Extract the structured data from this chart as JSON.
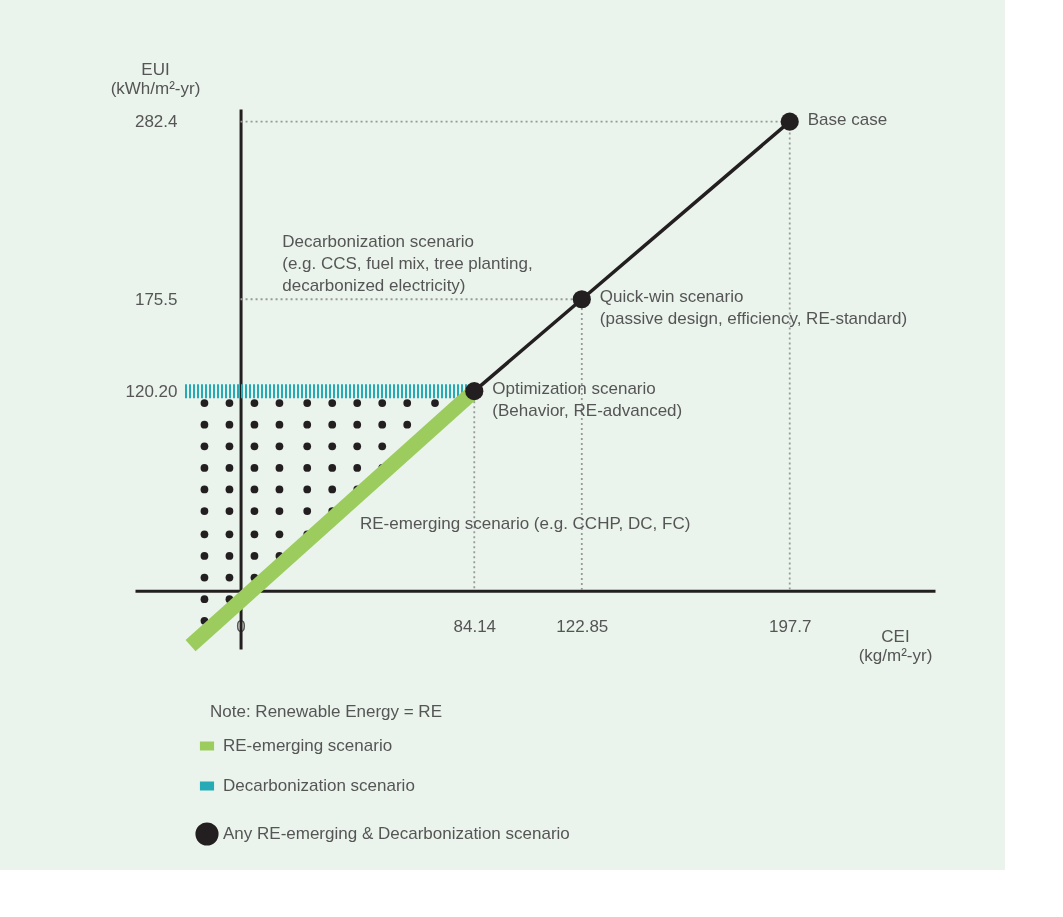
{
  "chart_data": {
    "type": "line",
    "xlabel": "CEI\n(kg/m²-yr)",
    "ylabel": "EUI\n(kWh/m²-yr)",
    "xlim": [
      -38,
      250
    ],
    "ylim": [
      -35,
      290
    ],
    "xticks": [
      0,
      84.14,
      122.85,
      197.7
    ],
    "yticks": [
      {
        "value": 120.2,
        "label": "120.20"
      },
      175.5,
      282.4
    ],
    "legend": "bottom",
    "series": [
      {
        "type": "line",
        "color": "#999999",
        "line_style": "dotted",
        "x": [
          84.14,
          84.14
        ],
        "values": [
          120.2,
          0
        ]
      },
      {
        "type": "line",
        "color": "#999999",
        "line_style": "dotted",
        "x": [
          0,
          122.85,
          122.85
        ],
        "values": [
          175.5,
          175.5,
          0
        ]
      },
      {
        "type": "line",
        "color": "#999999",
        "line_style": "dotted",
        "x": [
          0,
          197.7,
          197.7
        ],
        "values": [
          282.4,
          282.4,
          0
        ]
      },
      {
        "name": "Any RE-emerging & Decarbonization scenario",
        "type": "scatter",
        "color": "#231f20",
        "marker": "circle",
        "x": [
          -13,
          -4,
          5,
          14,
          24,
          33,
          42,
          51,
          60,
          70,
          -13,
          -4,
          5,
          14,
          24,
          33,
          42,
          51,
          60,
          -13,
          -4,
          5,
          14,
          24,
          33,
          42,
          51,
          -13,
          -4,
          5,
          14,
          24,
          33,
          42,
          51,
          -13,
          -4,
          5,
          14,
          24,
          33,
          42,
          -13,
          -4,
          5,
          14,
          24,
          33,
          -13,
          -4,
          5,
          14,
          24,
          -13,
          -4,
          5,
          14,
          -13,
          -4,
          5,
          -13,
          -4,
          -13
        ],
        "values": [
          113,
          113,
          113,
          113,
          113,
          113,
          113,
          113,
          113,
          113,
          100,
          100,
          100,
          100,
          100,
          100,
          100,
          100,
          100,
          87,
          87,
          87,
          87,
          87,
          87,
          87,
          87,
          74,
          74,
          74,
          74,
          74,
          74,
          74,
          74,
          61,
          61,
          61,
          61,
          61,
          61,
          61,
          48,
          48,
          48,
          48,
          48,
          48,
          34,
          34,
          34,
          34,
          34,
          21,
          21,
          21,
          21,
          8,
          8,
          8,
          -5,
          -5,
          -18
        ]
      },
      {
        "name": "Decarbonization scenario",
        "type": "line",
        "color": "#26aab6",
        "line_style": "dashed",
        "x": [
          -20,
          84.14
        ],
        "values": [
          120.2,
          120.2
        ]
      },
      {
        "name": "RE-emerging scenario",
        "color": "#9ccc5e",
        "x": [
          -18,
          84.14
        ],
        "values": [
          -33,
          120.2
        ]
      },
      {
        "color": "#231f20",
        "marker": "circle",
        "x": [
          84.14,
          122.85,
          197.7
        ],
        "values": [
          120.2,
          175.5,
          282.4
        ]
      }
    ],
    "annotations": [
      {
        "text": "Base case",
        "x": 197.7,
        "y": 282.4
      },
      {
        "text": "Quick-win scenario\n(passive design, efficiency, RE-standard)",
        "x": 122.85,
        "y": 175.5
      },
      {
        "text": "Optimization scenario\n(Behavior, RE-advanced)",
        "x": 84.14,
        "y": 120.2
      },
      "Decarbonization scenario\n(e.g. CCS, fuel mix, tree planting,\ndecarbonized electricity)",
      "RE-emerging scenario (e.g. CCHP, DC, FC)",
      "Note:   Renewable Energy = RE"
    ]
  }
}
